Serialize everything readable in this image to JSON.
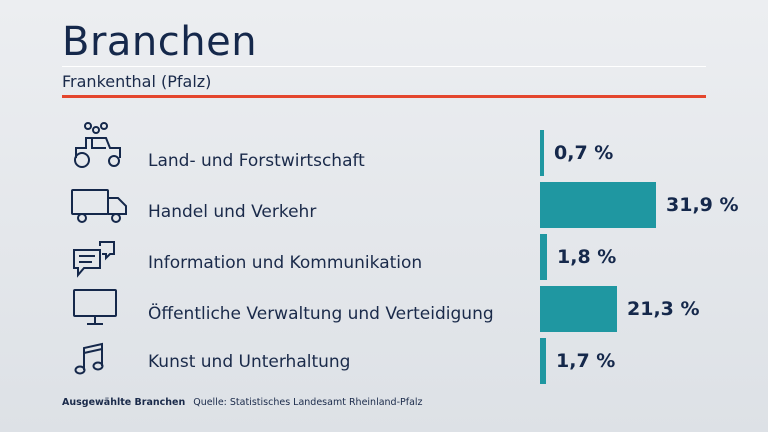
{
  "header": {
    "title": "Branchen",
    "subtitle": "Frankenthal (Pfalz)"
  },
  "footer": {
    "category": "Ausgewählte Branchen",
    "source": "Quelle: Statistisches Landesamt Rheinland-Pfalz"
  },
  "colors": {
    "bar": "#1f97a1",
    "accent_rule": "#e4462d",
    "text": "#15284b"
  },
  "chart_data": {
    "type": "bar",
    "orientation": "horizontal",
    "title": "Branchen",
    "subtitle": "Frankenthal (Pfalz)",
    "categories": [
      "Land- und Forstwirtschaft",
      "Handel und Verkehr",
      "Information und Kommunikation",
      "Öffentliche Verwaltung und Verteidigung",
      "Kunst und Unterhaltung"
    ],
    "values": [
      0.7,
      31.9,
      1.8,
      21.3,
      1.7
    ],
    "value_labels": [
      "0,7 %",
      "31,9 %",
      "1,8 %",
      "21,3 %",
      "1,7 %"
    ],
    "icons": [
      "tractor-icon",
      "truck-icon",
      "chat-bubbles-icon",
      "monitor-icon",
      "music-note-icon"
    ],
    "unit": "%",
    "xlim": [
      0,
      31.9
    ],
    "grid": false,
    "legend": "none"
  }
}
